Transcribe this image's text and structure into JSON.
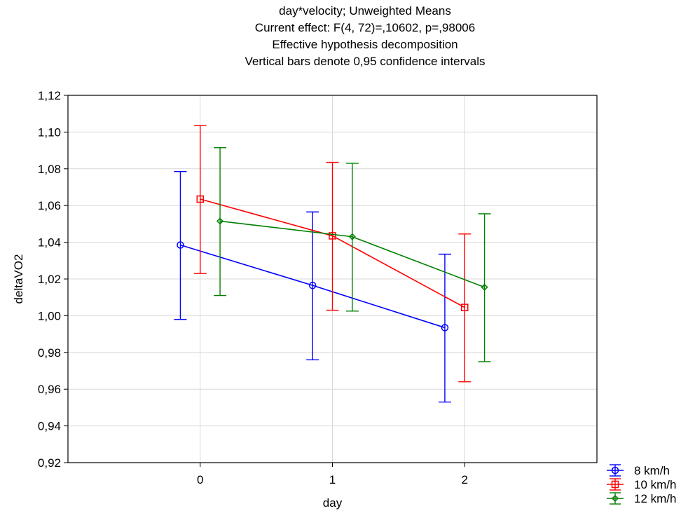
{
  "chart_data": {
    "type": "line",
    "title_lines": [
      "day*velocity; Unweighted Means",
      "Current effect: F(4, 72)=,10602, p=,98006",
      "Effective hypothesis decomposition",
      "Vertical bars denote 0,95 confidence intervals"
    ],
    "xlabel": "day",
    "ylabel": "deltaVO2",
    "categories": [
      "0",
      "1",
      "2"
    ],
    "xlim": [
      -1,
      3
    ],
    "ylim": [
      0.92,
      1.12
    ],
    "yticks": [
      0.92,
      0.94,
      0.96,
      0.98,
      1.0,
      1.02,
      1.04,
      1.06,
      1.08,
      1.1,
      1.12
    ],
    "ytick_labels": [
      "0,92",
      "0,94",
      "0,96",
      "0,98",
      "1,00",
      "1,02",
      "1,04",
      "1,06",
      "1,08",
      "1,10",
      "1,12"
    ],
    "grid": true,
    "legend_position": "bottom-right",
    "series": [
      {
        "name": "8 km/h",
        "color": "#0000ff",
        "marker": "circle",
        "offset": -0.15,
        "values": [
          1.0385,
          1.0165,
          0.9935
        ],
        "ci_lower": [
          0.998,
          0.976,
          0.953
        ],
        "ci_upper": [
          1.0785,
          1.0565,
          1.0335
        ]
      },
      {
        "name": "10 km/h",
        "color": "#ff0000",
        "marker": "square",
        "offset": 0.0,
        "values": [
          1.0635,
          1.0435,
          1.0045
        ],
        "ci_lower": [
          1.023,
          1.003,
          0.964
        ],
        "ci_upper": [
          1.1035,
          1.0835,
          1.0445
        ]
      },
      {
        "name": "12 km/h",
        "color": "#008000",
        "marker": "diamond",
        "offset": 0.15,
        "values": [
          1.0515,
          1.043,
          1.0155
        ],
        "ci_lower": [
          1.011,
          1.0025,
          0.975
        ],
        "ci_upper": [
          1.0915,
          1.083,
          1.0555
        ]
      }
    ]
  }
}
